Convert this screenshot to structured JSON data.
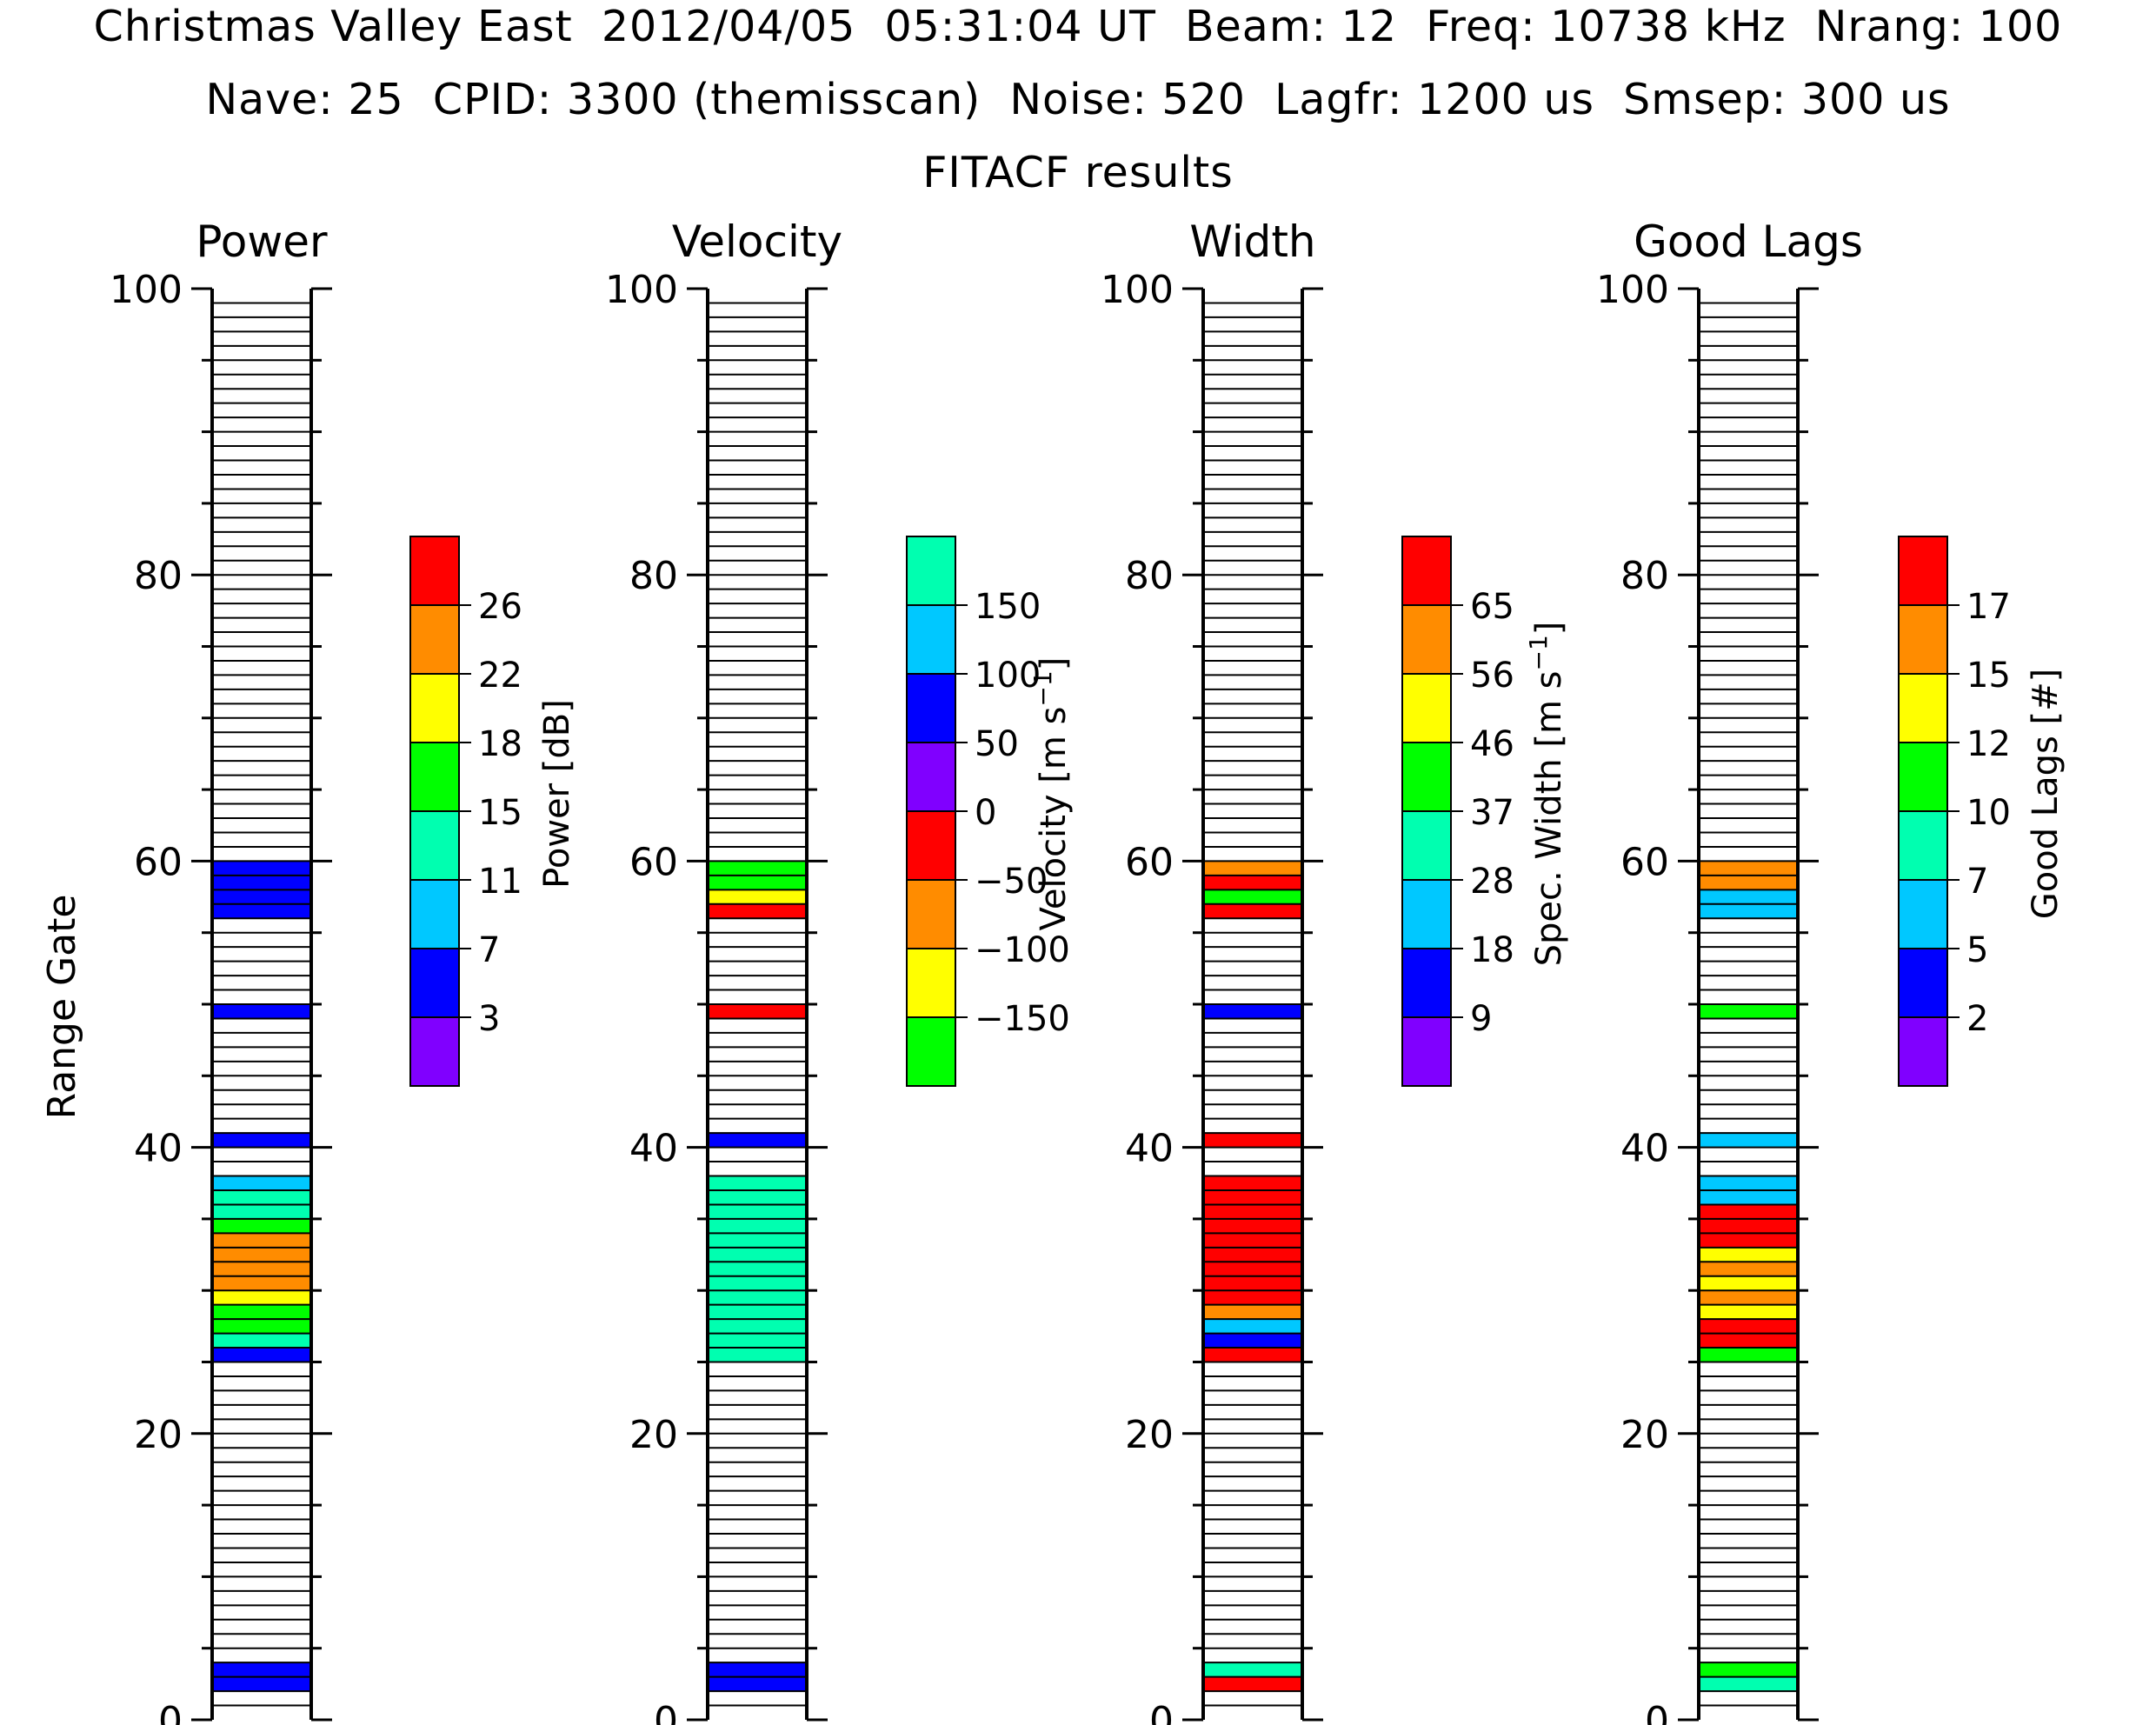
{
  "header": {
    "line1": "Christmas Valley East  2012/04/05  05:31:04 UT  Beam: 12  Freq: 10738 kHz  Nrang: 100",
    "line2": "Nave: 25  CPID: 3300 (themisscan)  Noise: 520  Lagfr: 1200 us  Smsep: 300 us",
    "line3": "FITACF results"
  },
  "y_axis_label": "Range Gate",
  "chart_data": [
    {
      "type": "heatmap",
      "title": "Power",
      "xlabel": "",
      "ylabel": "Range Gate",
      "ylim": [
        0,
        100
      ],
      "y_ticks": [
        "0",
        "20",
        "40",
        "60",
        "80",
        "100"
      ],
      "colorbar_label": "Power [dB]",
      "colorbar_ticks": [
        "3",
        "7",
        "11",
        "15",
        "18",
        "22",
        "26"
      ],
      "colorbar_colors": [
        "#8000ff",
        "#0000ff",
        "#00c8ff",
        "#00ffb0",
        "#00ff00",
        "#ffff00",
        "#ff8c00",
        "#ff0000"
      ],
      "cells": [
        {
          "gate": 2,
          "color_index": 1
        },
        {
          "gate": 3,
          "color_index": 1
        },
        {
          "gate": 25,
          "color_index": 1
        },
        {
          "gate": 26,
          "color_index": 3
        },
        {
          "gate": 27,
          "color_index": 4
        },
        {
          "gate": 28,
          "color_index": 4
        },
        {
          "gate": 29,
          "color_index": 5
        },
        {
          "gate": 30,
          "color_index": 6
        },
        {
          "gate": 31,
          "color_index": 6
        },
        {
          "gate": 32,
          "color_index": 6
        },
        {
          "gate": 33,
          "color_index": 6
        },
        {
          "gate": 34,
          "color_index": 4
        },
        {
          "gate": 35,
          "color_index": 3
        },
        {
          "gate": 36,
          "color_index": 3
        },
        {
          "gate": 37,
          "color_index": 2
        },
        {
          "gate": 40,
          "color_index": 1
        },
        {
          "gate": 49,
          "color_index": 1
        },
        {
          "gate": 56,
          "color_index": 1
        },
        {
          "gate": 57,
          "color_index": 1
        },
        {
          "gate": 58,
          "color_index": 1
        },
        {
          "gate": 59,
          "color_index": 1
        }
      ]
    },
    {
      "type": "heatmap",
      "title": "Velocity",
      "xlabel": "",
      "ylabel": "",
      "ylim": [
        0,
        100
      ],
      "y_ticks": [
        "0",
        "20",
        "40",
        "60",
        "80",
        "100"
      ],
      "colorbar_label": "Velocity [m s^-1]",
      "colorbar_ticks": [
        "−150",
        "−100",
        "−50",
        "0",
        "50",
        "100",
        "150"
      ],
      "colorbar_colors": [
        "#00ff00",
        "#ffff00",
        "#ff8c00",
        "#ff0000",
        "#8000ff",
        "#0000ff",
        "#00c8ff",
        "#00ffb0"
      ],
      "cells": [
        {
          "gate": 2,
          "color_index": 5
        },
        {
          "gate": 3,
          "color_index": 5
        },
        {
          "gate": 25,
          "color_index": 7
        },
        {
          "gate": 26,
          "color_index": 7
        },
        {
          "gate": 27,
          "color_index": 7
        },
        {
          "gate": 28,
          "color_index": 7
        },
        {
          "gate": 29,
          "color_index": 7
        },
        {
          "gate": 30,
          "color_index": 7
        },
        {
          "gate": 31,
          "color_index": 7
        },
        {
          "gate": 32,
          "color_index": 7
        },
        {
          "gate": 33,
          "color_index": 7
        },
        {
          "gate": 34,
          "color_index": 7
        },
        {
          "gate": 35,
          "color_index": 7
        },
        {
          "gate": 36,
          "color_index": 7
        },
        {
          "gate": 37,
          "color_index": 7
        },
        {
          "gate": 40,
          "color_index": 5
        },
        {
          "gate": 49,
          "color_index": 3
        },
        {
          "gate": 56,
          "color_index": 3
        },
        {
          "gate": 57,
          "color_index": 1
        },
        {
          "gate": 58,
          "color_index": 0
        },
        {
          "gate": 59,
          "color_index": 0
        }
      ]
    },
    {
      "type": "heatmap",
      "title": "Width",
      "xlabel": "",
      "ylabel": "",
      "ylim": [
        0,
        100
      ],
      "y_ticks": [
        "0",
        "20",
        "40",
        "60",
        "80",
        "100"
      ],
      "colorbar_label": "Spec. Width [m s^-1]",
      "colorbar_ticks": [
        "9",
        "18",
        "28",
        "37",
        "46",
        "56",
        "65"
      ],
      "colorbar_colors": [
        "#8000ff",
        "#0000ff",
        "#00c8ff",
        "#00ffb0",
        "#00ff00",
        "#ffff00",
        "#ff8c00",
        "#ff0000"
      ],
      "cells": [
        {
          "gate": 2,
          "color_index": 7
        },
        {
          "gate": 3,
          "color_index": 3
        },
        {
          "gate": 25,
          "color_index": 7
        },
        {
          "gate": 26,
          "color_index": 1
        },
        {
          "gate": 27,
          "color_index": 2
        },
        {
          "gate": 28,
          "color_index": 6
        },
        {
          "gate": 29,
          "color_index": 7
        },
        {
          "gate": 30,
          "color_index": 7
        },
        {
          "gate": 31,
          "color_index": 7
        },
        {
          "gate": 32,
          "color_index": 7
        },
        {
          "gate": 33,
          "color_index": 7
        },
        {
          "gate": 34,
          "color_index": 7
        },
        {
          "gate": 35,
          "color_index": 7
        },
        {
          "gate": 36,
          "color_index": 7
        },
        {
          "gate": 37,
          "color_index": 7
        },
        {
          "gate": 40,
          "color_index": 7
        },
        {
          "gate": 49,
          "color_index": 1
        },
        {
          "gate": 56,
          "color_index": 7
        },
        {
          "gate": 57,
          "color_index": 4
        },
        {
          "gate": 58,
          "color_index": 7
        },
        {
          "gate": 59,
          "color_index": 6
        }
      ]
    },
    {
      "type": "heatmap",
      "title": "Good Lags",
      "xlabel": "",
      "ylabel": "",
      "ylim": [
        0,
        100
      ],
      "y_ticks": [
        "0",
        "20",
        "40",
        "60",
        "80",
        "100"
      ],
      "colorbar_label": "Good Lags [#]",
      "colorbar_ticks": [
        "2",
        "5",
        "7",
        "10",
        "12",
        "15",
        "17"
      ],
      "colorbar_colors": [
        "#8000ff",
        "#0000ff",
        "#00c8ff",
        "#00ffb0",
        "#00ff00",
        "#ffff00",
        "#ff8c00",
        "#ff0000"
      ],
      "cells": [
        {
          "gate": 2,
          "color_index": 3
        },
        {
          "gate": 3,
          "color_index": 4
        },
        {
          "gate": 25,
          "color_index": 4
        },
        {
          "gate": 26,
          "color_index": 7
        },
        {
          "gate": 27,
          "color_index": 7
        },
        {
          "gate": 28,
          "color_index": 5
        },
        {
          "gate": 29,
          "color_index": 6
        },
        {
          "gate": 30,
          "color_index": 5
        },
        {
          "gate": 31,
          "color_index": 6
        },
        {
          "gate": 32,
          "color_index": 5
        },
        {
          "gate": 33,
          "color_index": 7
        },
        {
          "gate": 34,
          "color_index": 7
        },
        {
          "gate": 35,
          "color_index": 7
        },
        {
          "gate": 36,
          "color_index": 2
        },
        {
          "gate": 37,
          "color_index": 2
        },
        {
          "gate": 40,
          "color_index": 2
        },
        {
          "gate": 49,
          "color_index": 4
        },
        {
          "gate": 56,
          "color_index": 2
        },
        {
          "gate": 57,
          "color_index": 2
        },
        {
          "gate": 58,
          "color_index": 6
        },
        {
          "gate": 59,
          "color_index": 6
        }
      ]
    }
  ]
}
